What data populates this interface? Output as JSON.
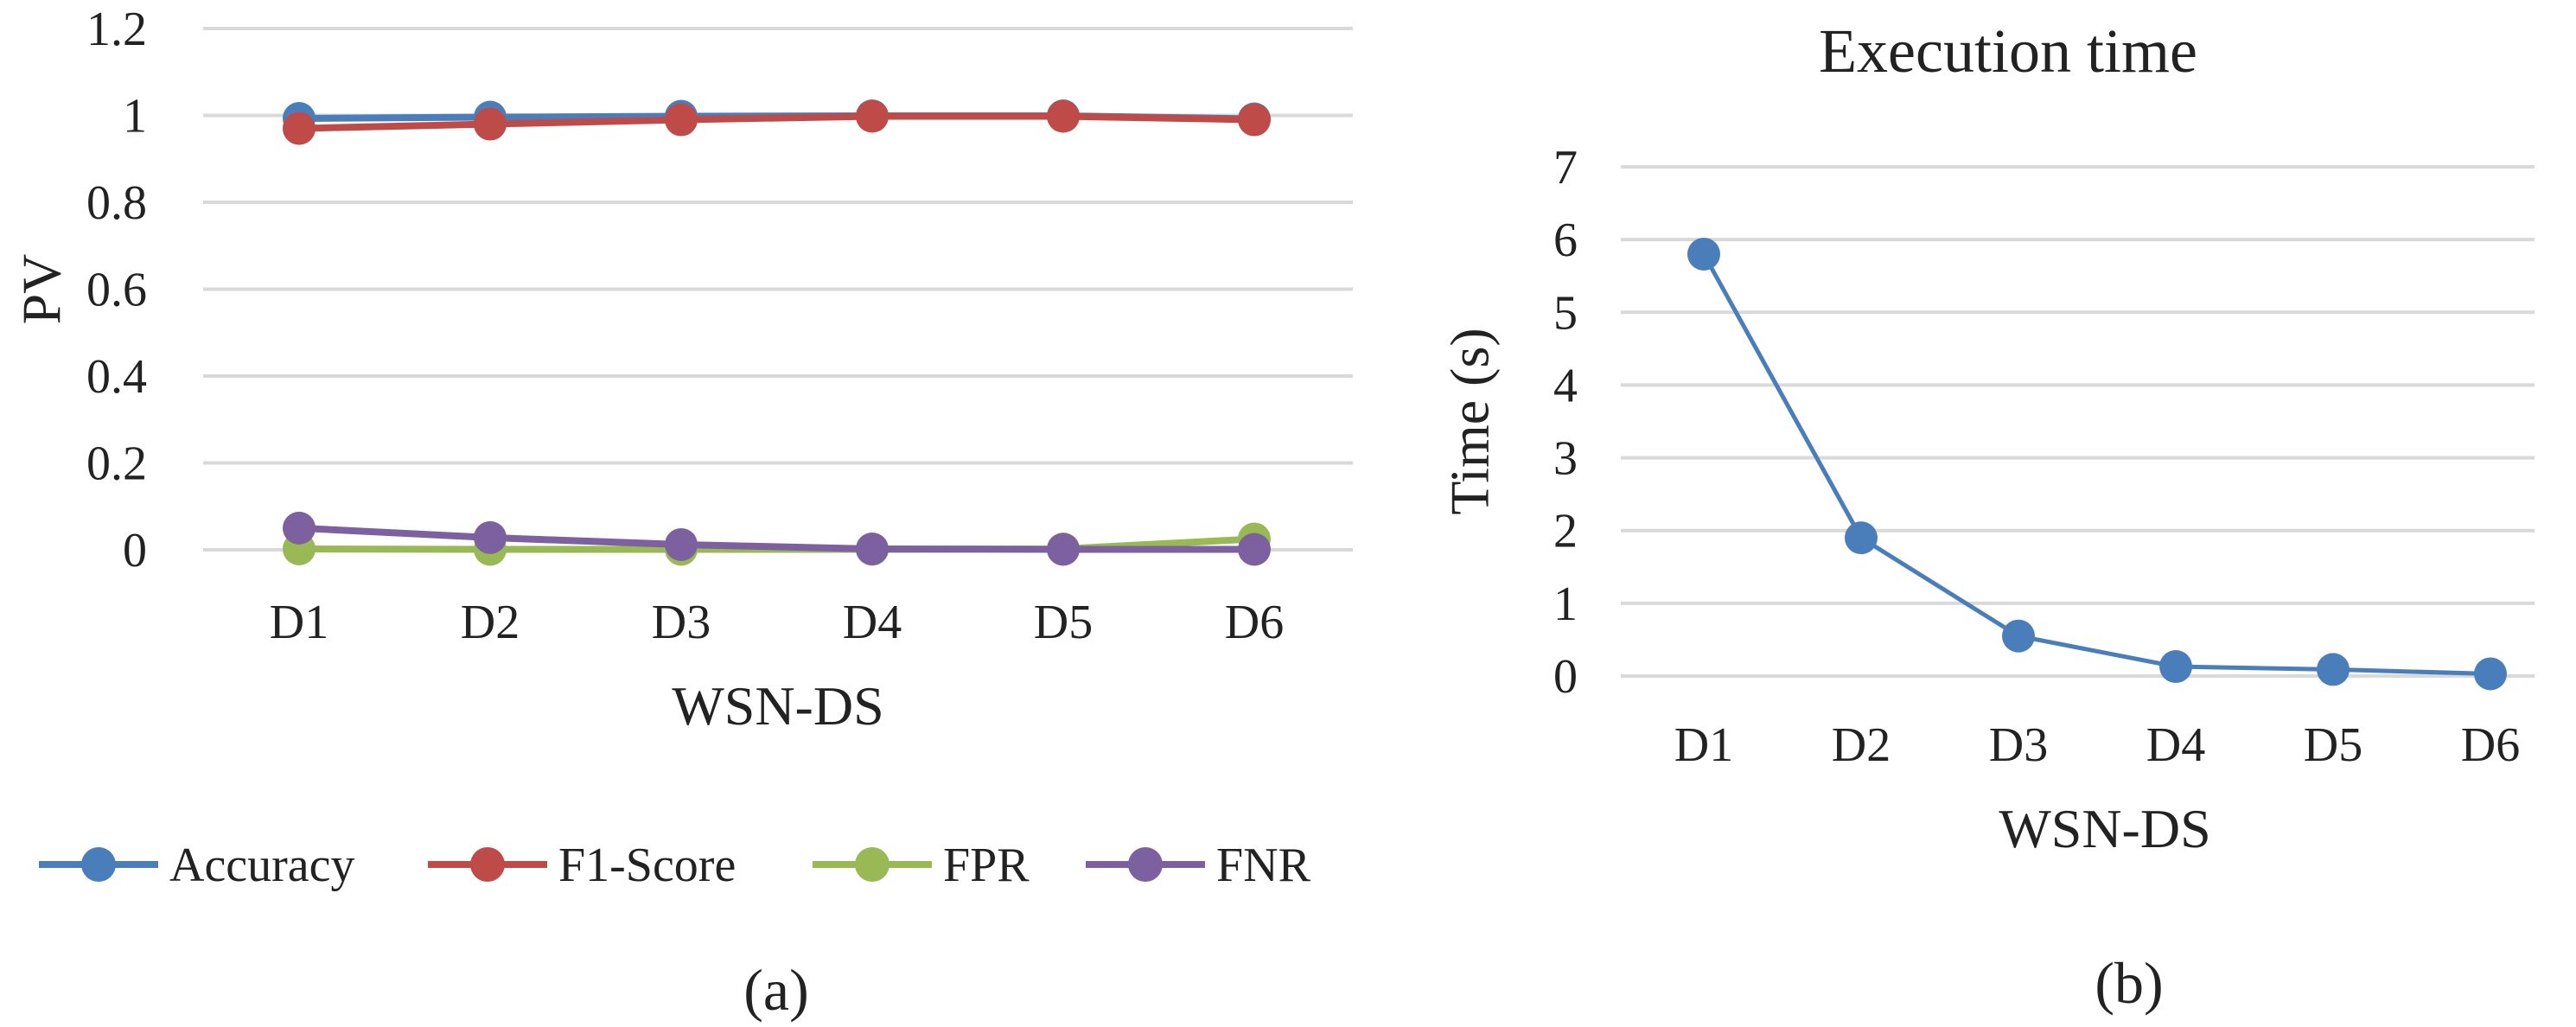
{
  "chart_data": [
    {
      "panel_label": "(a)",
      "type": "line",
      "title": "",
      "xlabel": "WSN-DS",
      "ylabel": "PV",
      "categories": [
        "D1",
        "D2",
        "D3",
        "D4",
        "D5",
        "D6"
      ],
      "ylim": [
        0,
        1.2
      ],
      "yticks": [
        "0",
        "0.2",
        "0.4",
        "0.6",
        "0.8",
        "1",
        "1.2"
      ],
      "grid": true,
      "legend_position": "bottom",
      "series": [
        {
          "name": "Accuracy",
          "color": "#4a7ebb",
          "values": [
            0.993,
            0.996,
            0.998,
            0.999,
            0.999,
            0.992
          ]
        },
        {
          "name": "F1-Score",
          "color": "#be4b48",
          "values": [
            0.97,
            0.98,
            0.99,
            0.998,
            0.998,
            0.99
          ]
        },
        {
          "name": "FPR",
          "color": "#98b954",
          "values": [
            0.002,
            0.001,
            0.001,
            0.001,
            0.002,
            0.025
          ]
        },
        {
          "name": "FNR",
          "color": "#7d60a0",
          "values": [
            0.05,
            0.028,
            0.012,
            0.002,
            0.001,
            0.001
          ]
        }
      ]
    },
    {
      "panel_label": "(b)",
      "type": "line",
      "title": "Execution time",
      "xlabel": "WSN-DS",
      "ylabel": "Time (s)",
      "categories": [
        "D1",
        "D2",
        "D3",
        "D4",
        "D5",
        "D6"
      ],
      "ylim": [
        0,
        7
      ],
      "yticks": [
        "0",
        "1",
        "2",
        "3",
        "4",
        "5",
        "6",
        "7"
      ],
      "grid": true,
      "legend_position": "none",
      "series": [
        {
          "color": "#4a7ebb",
          "values": [
            5.8,
            1.9,
            0.55,
            0.13,
            0.09,
            0.03
          ]
        }
      ]
    }
  ]
}
